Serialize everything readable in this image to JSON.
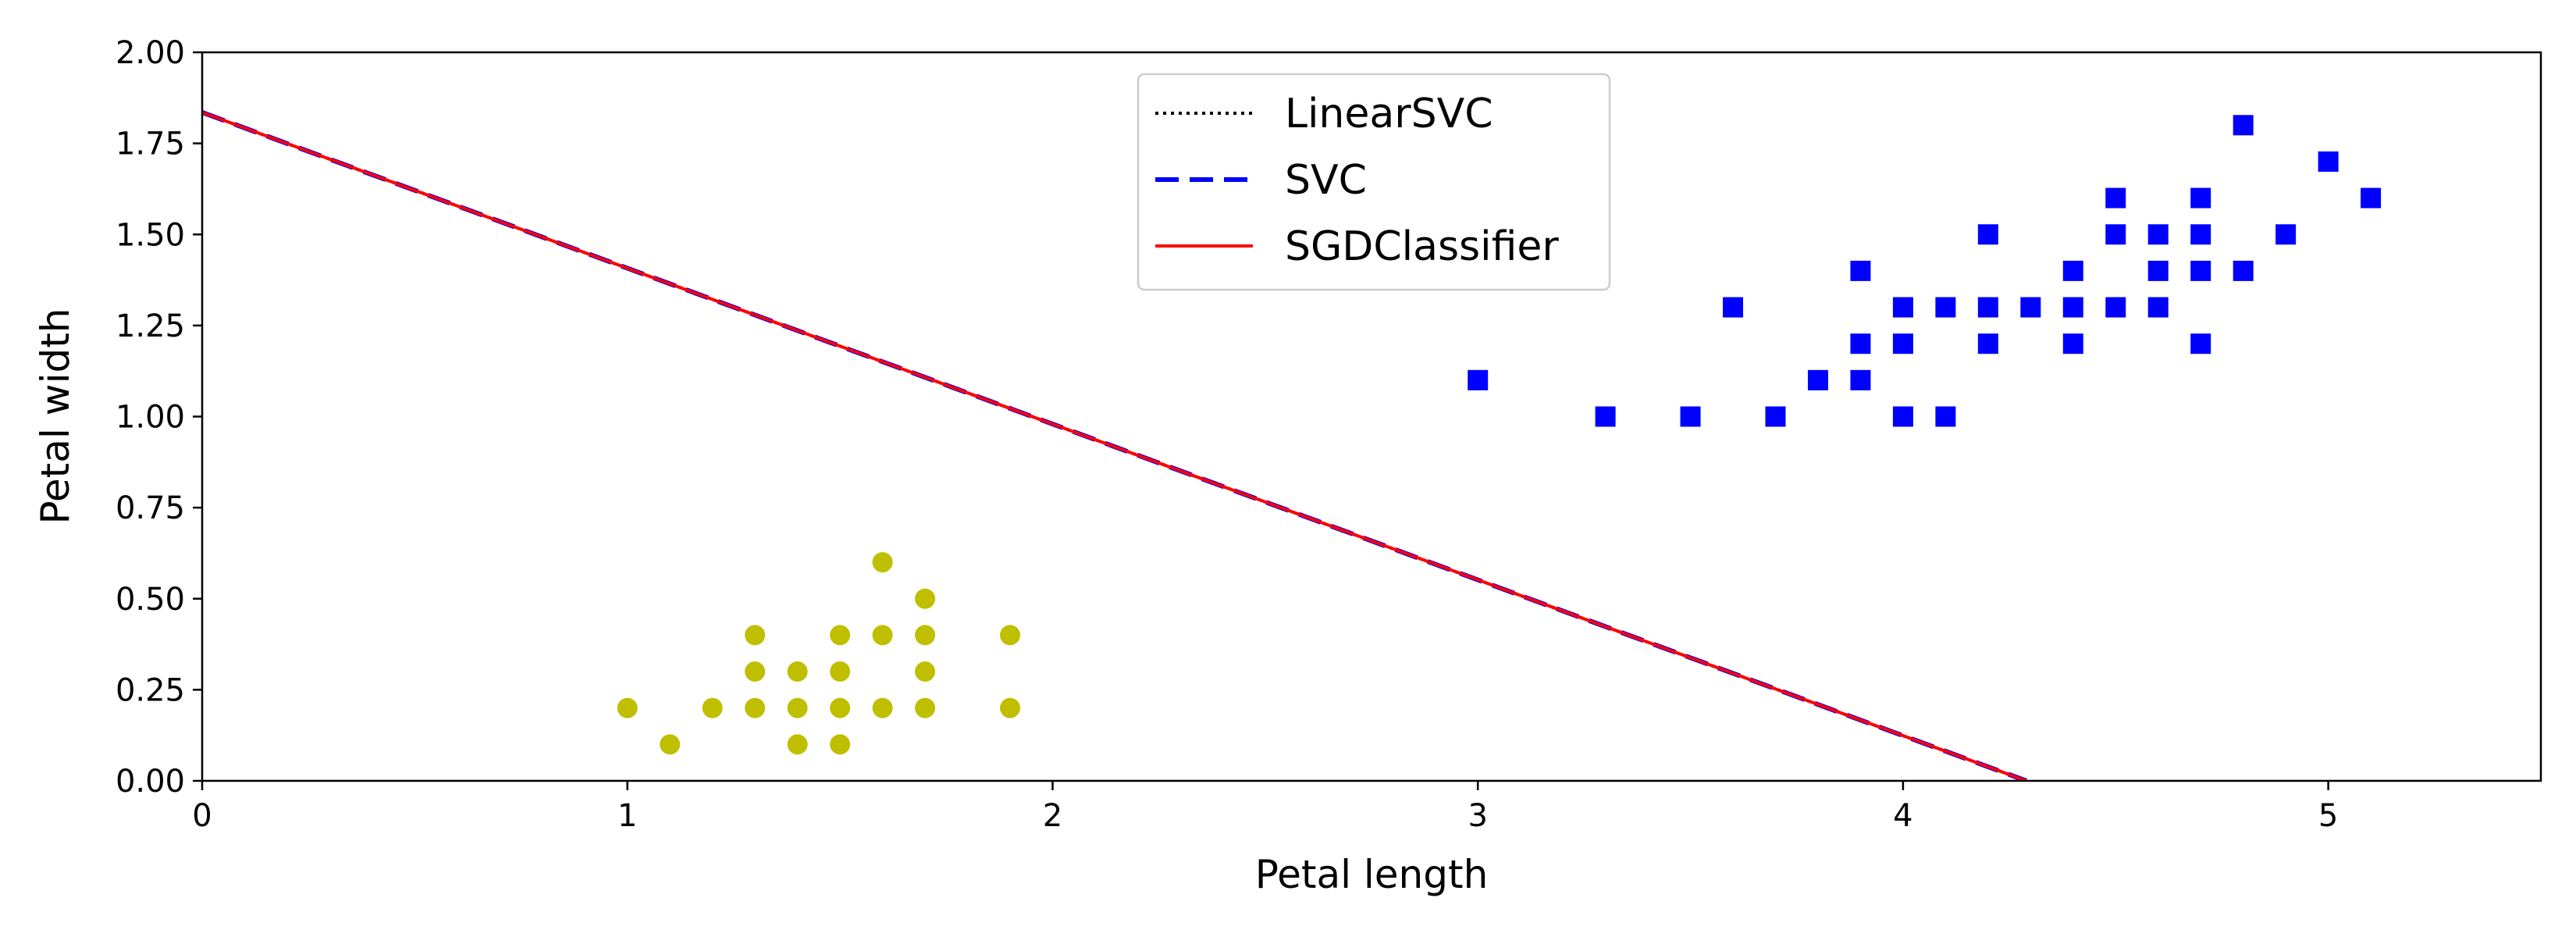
{
  "chart_data": {
    "type": "scatter",
    "xlabel": "Petal length",
    "ylabel": "Petal width",
    "xlim": [
      0,
      5.5
    ],
    "ylim": [
      0,
      2.0
    ],
    "x_ticks": [
      "0",
      "1",
      "2",
      "3",
      "4",
      "5"
    ],
    "x_tick_values": [
      0,
      1,
      2,
      3,
      4,
      5
    ],
    "y_ticks": [
      "0.00",
      "0.25",
      "0.50",
      "0.75",
      "1.00",
      "1.25",
      "1.50",
      "1.75",
      "2.00"
    ],
    "y_tick_values": [
      0,
      0.25,
      0.5,
      0.75,
      1.0,
      1.25,
      1.5,
      1.75,
      2.0
    ],
    "grid": false,
    "legend_position": "top-center",
    "series": [
      {
        "kind": "scatter",
        "marker": "circle",
        "color": "#bfbf00",
        "points": [
          [
            1.0,
            0.2
          ],
          [
            1.1,
            0.1
          ],
          [
            1.2,
            0.2
          ],
          [
            1.3,
            0.2
          ],
          [
            1.3,
            0.3
          ],
          [
            1.3,
            0.4
          ],
          [
            1.4,
            0.1
          ],
          [
            1.4,
            0.2
          ],
          [
            1.4,
            0.3
          ],
          [
            1.5,
            0.1
          ],
          [
            1.5,
            0.2
          ],
          [
            1.5,
            0.3
          ],
          [
            1.5,
            0.4
          ],
          [
            1.6,
            0.2
          ],
          [
            1.6,
            0.4
          ],
          [
            1.6,
            0.6
          ],
          [
            1.7,
            0.2
          ],
          [
            1.7,
            0.3
          ],
          [
            1.7,
            0.4
          ],
          [
            1.7,
            0.5
          ],
          [
            1.9,
            0.2
          ],
          [
            1.9,
            0.4
          ]
        ]
      },
      {
        "kind": "scatter",
        "marker": "square",
        "color": "#0000ff",
        "points": [
          [
            3.0,
            1.1
          ],
          [
            3.3,
            1.0
          ],
          [
            3.5,
            1.0
          ],
          [
            3.6,
            1.3
          ],
          [
            3.7,
            1.0
          ],
          [
            3.8,
            1.1
          ],
          [
            3.9,
            1.1
          ],
          [
            3.9,
            1.2
          ],
          [
            3.9,
            1.4
          ],
          [
            4.0,
            1.0
          ],
          [
            4.0,
            1.2
          ],
          [
            4.0,
            1.3
          ],
          [
            4.1,
            1.0
          ],
          [
            4.1,
            1.3
          ],
          [
            4.2,
            1.2
          ],
          [
            4.2,
            1.3
          ],
          [
            4.2,
            1.5
          ],
          [
            4.3,
            1.3
          ],
          [
            4.4,
            1.2
          ],
          [
            4.4,
            1.3
          ],
          [
            4.4,
            1.4
          ],
          [
            4.5,
            1.3
          ],
          [
            4.5,
            1.5
          ],
          [
            4.5,
            1.6
          ],
          [
            4.6,
            1.3
          ],
          [
            4.6,
            1.4
          ],
          [
            4.6,
            1.5
          ],
          [
            4.7,
            1.2
          ],
          [
            4.7,
            1.4
          ],
          [
            4.7,
            1.5
          ],
          [
            4.7,
            1.6
          ],
          [
            4.8,
            1.4
          ],
          [
            4.8,
            1.8
          ],
          [
            4.9,
            1.5
          ],
          [
            5.0,
            1.7
          ],
          [
            5.1,
            1.6
          ]
        ]
      },
      {
        "kind": "line",
        "name": "LinearSVC",
        "style": "dotted",
        "color": "#000000",
        "x": [
          0,
          4.29
        ],
        "y": [
          1.835,
          0.0
        ]
      },
      {
        "kind": "line",
        "name": "SVC",
        "style": "dashed",
        "color": "#0000ff",
        "x": [
          0,
          4.29
        ],
        "y": [
          1.835,
          0.0
        ]
      },
      {
        "kind": "line",
        "name": "SGDClassifier",
        "style": "solid",
        "color": "#ff0000",
        "x": [
          0,
          4.29
        ],
        "y": [
          1.835,
          0.0
        ]
      }
    ]
  }
}
